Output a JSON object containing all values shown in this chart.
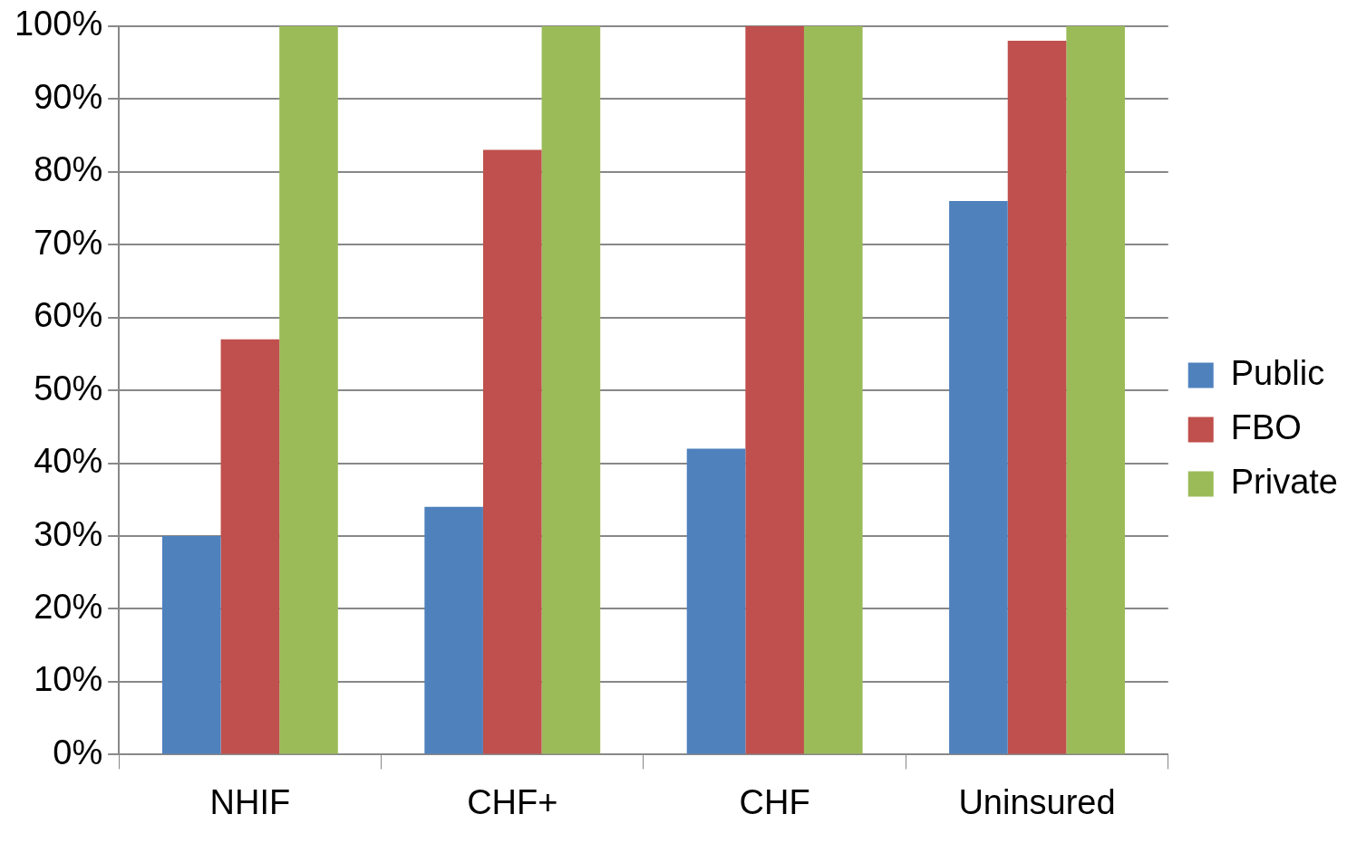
{
  "chart_data": {
    "type": "bar",
    "categories": [
      "NHIF",
      "CHF+",
      "CHF",
      "Uninsured"
    ],
    "series": [
      {
        "name": "Public",
        "color": "#4f81bd",
        "values": [
          30,
          34,
          42,
          76
        ]
      },
      {
        "name": "FBO",
        "color": "#c0504d",
        "values": [
          57,
          83,
          100,
          98
        ]
      },
      {
        "name": "Private",
        "color": "#9bbb59",
        "values": [
          100,
          100,
          100,
          100
        ]
      }
    ],
    "ylim": [
      0,
      100
    ],
    "yticks": [
      {
        "value": 0,
        "label": "0%"
      },
      {
        "value": 10,
        "label": "10%"
      },
      {
        "value": 20,
        "label": "20%"
      },
      {
        "value": 30,
        "label": "30%"
      },
      {
        "value": 40,
        "label": "40%"
      },
      {
        "value": 50,
        "label": "50%"
      },
      {
        "value": 60,
        "label": "60%"
      },
      {
        "value": 70,
        "label": "70%"
      },
      {
        "value": 80,
        "label": "80%"
      },
      {
        "value": 90,
        "label": "90%"
      },
      {
        "value": 100,
        "label": "100%"
      }
    ],
    "grid": "y",
    "legend": "right"
  }
}
